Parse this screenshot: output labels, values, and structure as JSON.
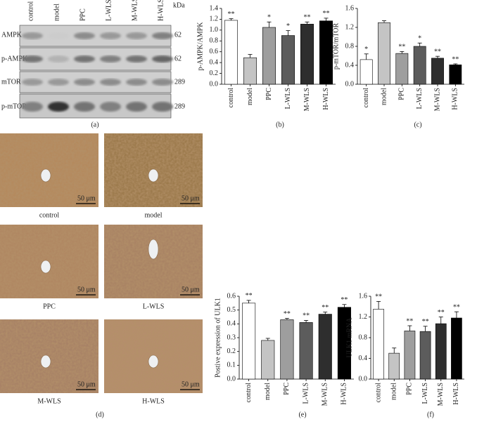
{
  "chart_data": [
    {
      "type": "bar",
      "ylabel": "p-AMPK/AMPK",
      "categories": [
        "control",
        "model",
        "PPC",
        "L-WLS",
        "M-WLS",
        "H-WLS"
      ],
      "values": [
        1.18,
        0.49,
        1.05,
        0.9,
        1.11,
        1.17
      ],
      "errors": [
        0.03,
        0.06,
        0.1,
        0.09,
        0.04,
        0.05
      ],
      "significance": [
        "**",
        null,
        "*",
        "*",
        "**",
        "**"
      ],
      "colors": [
        "#ffffff",
        "#c4c4c4",
        "#9e9e9e",
        "#5c5c5c",
        "#2e2e2e",
        "#000000"
      ],
      "ylim": [
        0,
        1.4
      ],
      "yticks": [
        {
          "value": 0,
          "label": "0.0"
        },
        0.2,
        0.4,
        0.6,
        0.8,
        {
          "value": 1,
          "label": "1.0"
        },
        1.2,
        1.4
      ]
    },
    {
      "type": "bar",
      "ylabel": "p-mTOR/mTOR",
      "categories": [
        "control",
        "model",
        "PPC",
        "L-WLS",
        "M-WLS",
        "H-WLS"
      ],
      "values": [
        0.52,
        1.3,
        0.65,
        0.8,
        0.55,
        0.41
      ],
      "errors": [
        0.12,
        0.04,
        0.04,
        0.07,
        0.04,
        0.02
      ],
      "significance": [
        "*",
        null,
        "**",
        "*",
        "**",
        "**"
      ],
      "colors": [
        "#ffffff",
        "#c4c4c4",
        "#9e9e9e",
        "#5c5c5c",
        "#2e2e2e",
        "#000000"
      ],
      "ylim": [
        0,
        1.6
      ],
      "yticks": [
        {
          "value": 0,
          "label": "0.0"
        },
        0.4,
        0.8,
        1.2,
        1.6
      ]
    },
    {
      "type": "bar",
      "ylabel": "Postive expression of ULK1",
      "categories": [
        "control",
        "model",
        "PPC",
        "L-WLS",
        "M-WLS",
        "H-WLS"
      ],
      "values": [
        0.55,
        0.28,
        0.43,
        0.41,
        0.47,
        0.52
      ],
      "errors": [
        0.02,
        0.015,
        0.01,
        0.015,
        0.015,
        0.02
      ],
      "significance": [
        "**",
        null,
        "**",
        "**",
        "**",
        "**"
      ],
      "colors": [
        "#ffffff",
        "#c4c4c4",
        "#9e9e9e",
        "#5c5c5c",
        "#2e2e2e",
        "#000000"
      ],
      "ylim": [
        0,
        0.6
      ],
      "yticks": [
        {
          "value": 0,
          "label": "0.0"
        },
        0.1,
        0.2,
        0.3,
        0.4,
        0.5,
        0.6
      ]
    },
    {
      "type": "bar",
      "ylabel": "ULK1 mRNA",
      "categories": [
        "control",
        "model",
        "PPC",
        "L-WLS",
        "M-WLS",
        "H-WLS"
      ],
      "values": [
        1.35,
        0.5,
        0.93,
        0.92,
        1.07,
        1.18
      ],
      "errors": [
        0.15,
        0.1,
        0.1,
        0.1,
        0.13,
        0.12
      ],
      "significance": [
        "**",
        null,
        "**",
        "**",
        "**",
        "**"
      ],
      "colors": [
        "#ffffff",
        "#c4c4c4",
        "#9e9e9e",
        "#5c5c5c",
        "#2e2e2e",
        "#000000"
      ],
      "ylim": [
        0,
        1.6
      ],
      "yticks": [
        {
          "value": 0,
          "label": "0.0"
        },
        0.4,
        0.8,
        1.2,
        1.6
      ]
    }
  ],
  "blot": {
    "lanes": [
      "control",
      "model",
      "PPC",
      "L-WLS",
      "M-WLS",
      "H-WLS"
    ],
    "unit": "kDa",
    "rows": [
      "AMPK",
      "p-AMPK",
      "mTOR",
      "p-mTOR"
    ],
    "weights": [
      "62",
      "62",
      "289",
      "289"
    ]
  },
  "histology": {
    "labels": [
      "control",
      "model",
      "PPC",
      "L-WLS",
      "M-WLS",
      "H-WLS"
    ],
    "scale_bar": "50 μm"
  },
  "panel_labels": [
    "(a)",
    "(b)",
    "(c)",
    "(d)",
    "(e)",
    "(f)"
  ]
}
